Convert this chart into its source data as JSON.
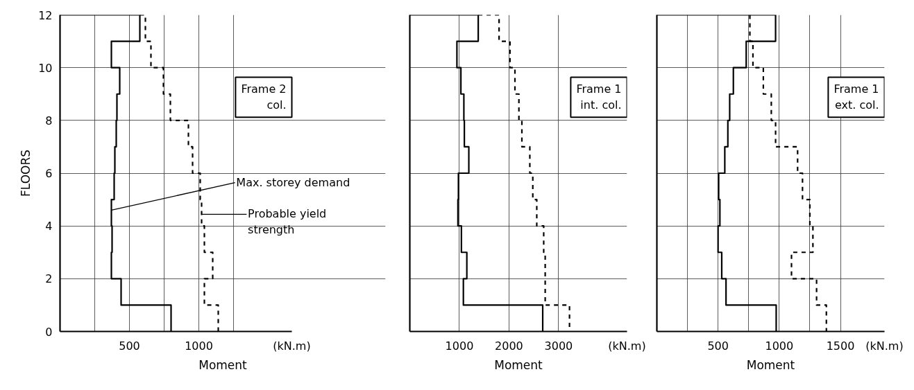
{
  "chart_data": [
    {
      "type": "line",
      "title": "Frame 2\ncol.",
      "xlabel": "Moment",
      "ylabel": "FLOORS",
      "series": [
        {
          "color": "#000000",
          "line_style": "solid",
          "x": [
            0,
            575,
            575,
            370,
            370,
            430,
            430,
            410,
            410,
            405,
            405,
            395,
            395,
            390,
            390,
            370,
            370,
            375,
            375,
            370,
            370,
            440,
            440,
            800,
            800
          ],
          "values": [
            12,
            12,
            11,
            11,
            10,
            10,
            9,
            9,
            8,
            8,
            7,
            7,
            6,
            6,
            5,
            5,
            4,
            4,
            3,
            3,
            2,
            2,
            1,
            1,
            0
          ]
        },
        {
          "color": "#000000",
          "line_style": "dashed",
          "x": [
            575,
            615,
            615,
            655,
            655,
            745,
            745,
            795,
            795,
            925,
            925,
            955,
            955,
            1010,
            1010,
            1020,
            1020,
            1040,
            1040,
            1100,
            1100,
            1040,
            1040,
            1140,
            1140
          ],
          "values": [
            12,
            12,
            11,
            11,
            10,
            10,
            9,
            9,
            8,
            8,
            7,
            7,
            6,
            6,
            5,
            5,
            4,
            4,
            3,
            3,
            2,
            2,
            1,
            1,
            0
          ]
        }
      ],
      "xlim": [
        0,
        1670
      ],
      "xticks": [
        {
          "value": 250,
          "label": null
        },
        500,
        {
          "value": 750,
          "label": null
        },
        1000,
        {
          "value": 1250,
          "label": null
        }
      ],
      "ylim": [
        0,
        12
      ],
      "yticks": [
        0,
        2,
        4,
        6,
        8,
        10,
        12
      ],
      "grid": true,
      "annotations": [
        "(kN.m)",
        {
          "text": "Max. storey demand",
          "x": 370,
          "y": 4.6
        },
        "Probable yield\nstrength"
      ]
    },
    {
      "type": "line",
      "title": "Frame 1\nint. col.",
      "xlabel": "Moment",
      "series": [
        {
          "color": "#000000",
          "line_style": "solid",
          "x": [
            0,
            1380,
            1380,
            950,
            950,
            1030,
            1030,
            1090,
            1090,
            1100,
            1100,
            1190,
            1190,
            980,
            980,
            970,
            970,
            1040,
            1040,
            1150,
            1150,
            1080,
            1080,
            2680,
            2680
          ],
          "values": [
            12,
            12,
            11,
            11,
            10,
            10,
            9,
            9,
            8,
            8,
            7,
            7,
            6,
            6,
            5,
            5,
            4,
            4,
            3,
            3,
            2,
            2,
            1,
            1,
            0
          ]
        },
        {
          "color": "#000000",
          "line_style": "dashed",
          "x": [
            1380,
            1800,
            1800,
            2020,
            2020,
            2120,
            2120,
            2200,
            2200,
            2260,
            2260,
            2420,
            2420,
            2480,
            2480,
            2560,
            2560,
            2700,
            2700,
            2730,
            2730,
            2730,
            2730,
            3220,
            3220
          ],
          "values": [
            12,
            12,
            11,
            11,
            10,
            10,
            9,
            9,
            8,
            8,
            7,
            7,
            6,
            6,
            5,
            5,
            4,
            4,
            3,
            3,
            2,
            2,
            1,
            1,
            0
          ]
        }
      ],
      "xlim": [
        0,
        4380
      ],
      "xticks": [
        1000,
        2000,
        3000
      ],
      "ylim": [
        0,
        12
      ],
      "yticks": [
        0,
        2,
        4,
        6,
        8,
        10,
        12
      ],
      "grid": true,
      "tick_labels": "x",
      "annotations": [
        "(kN.m)"
      ]
    },
    {
      "type": "line",
      "title": "Frame 1\next. col.",
      "xlabel": "Moment",
      "series": [
        {
          "color": "#000000",
          "line_style": "solid",
          "x": [
            0,
            970,
            970,
            730,
            730,
            625,
            625,
            595,
            595,
            580,
            580,
            555,
            555,
            505,
            505,
            515,
            515,
            500,
            500,
            530,
            530,
            565,
            565,
            975,
            975
          ],
          "values": [
            12,
            12,
            11,
            11,
            10,
            10,
            9,
            9,
            8,
            8,
            7,
            7,
            6,
            6,
            5,
            5,
            4,
            4,
            3,
            3,
            2,
            2,
            1,
            1,
            0
          ]
        },
        {
          "color": "#000000",
          "line_style": "dashed",
          "x": [
            760,
            760,
            785,
            785,
            870,
            870,
            935,
            935,
            970,
            970,
            1150,
            1150,
            1190,
            1190,
            1250,
            1250,
            1275,
            1275,
            1100,
            1100,
            1305,
            1305,
            1385,
            1385
          ],
          "values": [
            12,
            11,
            11,
            10,
            10,
            9,
            9,
            8,
            8,
            7,
            7,
            6,
            6,
            5,
            5,
            4,
            4,
            3,
            3,
            2,
            2,
            1,
            1,
            0
          ]
        }
      ],
      "xlim": [
        0,
        1860
      ],
      "xticks": [
        {
          "value": 250,
          "label": null
        },
        500,
        {
          "value": 750,
          "label": null
        },
        1000,
        {
          "value": 1250,
          "label": null
        },
        1500
      ],
      "ylim": [
        0,
        12
      ],
      "yticks": [
        0,
        2,
        4,
        6,
        8,
        10,
        12
      ],
      "grid": true,
      "tick_labels": "x",
      "annotations": [
        "(kN.m)"
      ]
    }
  ]
}
